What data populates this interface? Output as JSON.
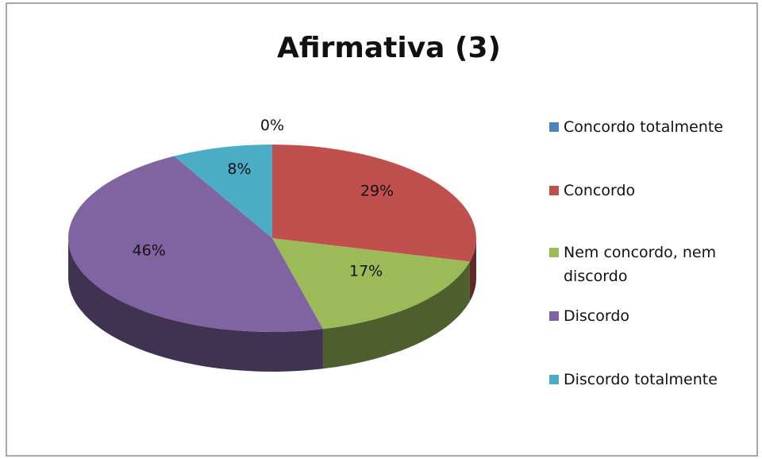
{
  "chart_data": {
    "type": "pie",
    "title": "Afirmativa (3)",
    "categories": [
      "Concordo totalmente",
      "Concordo",
      "Nem concordo, nem discordo",
      "Discordo",
      "Discordo totalmente"
    ],
    "values": [
      0,
      29,
      17,
      46,
      8
    ],
    "value_labels": [
      "0%",
      "29%",
      "17%",
      "46%",
      "8%"
    ],
    "colors": [
      "#4f81bd",
      "#c0504d",
      "#9bbb59",
      "#8064a2",
      "#4bacc6"
    ],
    "legend": "right"
  }
}
